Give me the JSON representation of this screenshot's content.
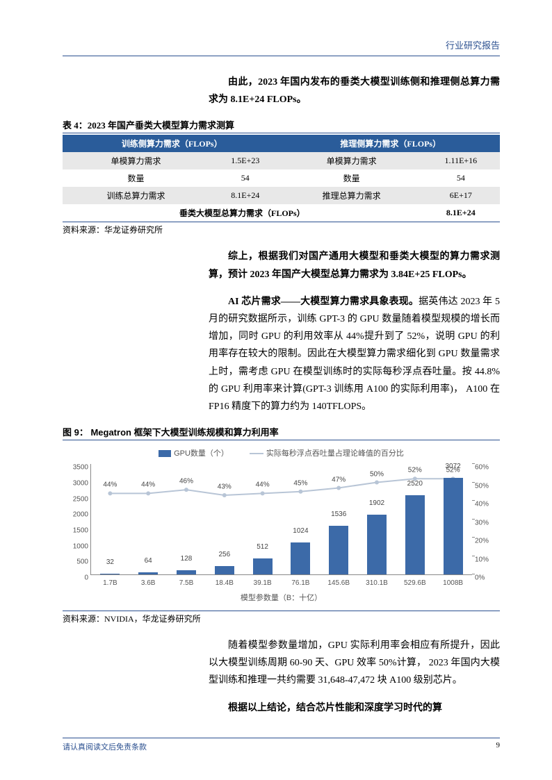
{
  "header": {
    "title": "行业研究报告"
  },
  "para1": "由此，2023 年国内发布的垂类大模型训练侧和推理侧总算力需求为 8.1E+24 FLOPs。",
  "table": {
    "title": "表 4：2023 年国产垂类大模型算力需求测算",
    "headers": [
      "训练侧算力需求（FLOPs）",
      "推理侧算力需求（FLOPs）"
    ],
    "rows": [
      [
        "单模算力需求",
        "1.5E+23",
        "单模算力需求",
        "1.11E+16"
      ],
      [
        "数量",
        "54",
        "数量",
        "54"
      ],
      [
        "训练总算力需求",
        "8.1E+24",
        "推理总算力需求",
        "6E+17"
      ]
    ],
    "total_row": [
      "垂类大模型总算力需求（FLOPs）",
      "8.1E+24"
    ],
    "source": "资料来源：华龙证券研究所"
  },
  "para2": "综上，根据我们对国产通用大模型和垂类大模型的算力需求测算，预计 2023 年国产大模型总算力需求为 3.84E+25 FLOPs。",
  "para3_lead": "AI 芯片需求——大模型算力需求具象表现。",
  "para3_body": "据英伟达 2023 年 5 月的研究数据所示，训练 GPT-3 的 GPU 数量随着模型规模的增长而增加，同时 GPU 的利用效率从 44%提升到了 52%，说明 GPU 的利用率存在较大的限制。因此在大模型算力需求细化到 GPU 数量需求上时，需考虑 GPU 在模型训练时的实际每秒浮点吞吐量。按 44.8%的 GPU 利用率来计算(GPT-3 训练用 A100 的实际利用率)， A100 在 FP16 精度下的算力约为 140TFLOPS。",
  "chart": {
    "title": "图 9： Megatron 框架下大模型训练规模和算力利用率",
    "legend_bar": "GPU数量（个）",
    "legend_line": "实际每秒浮点吞吐量占理论峰值的百分比",
    "x_categories": [
      "1.7B",
      "3.6B",
      "7.5B",
      "18.4B",
      "39.1B",
      "76.1B",
      "145.6B",
      "310.1B",
      "529.6B",
      "1008B"
    ],
    "bar_values": [
      32,
      64,
      128,
      256,
      512,
      1024,
      1536,
      1902,
      2520,
      3072
    ],
    "line_values_pct": [
      44,
      44,
      46,
      43,
      44,
      45,
      47,
      50,
      52,
      52
    ],
    "y_left": {
      "min": 0,
      "max": 3500,
      "ticks": [
        0,
        500,
        1000,
        1500,
        2000,
        2500,
        3000,
        3500
      ]
    },
    "y_right": {
      "min": 0,
      "max": 60,
      "ticks": [
        0,
        10,
        20,
        30,
        40,
        50,
        60
      ],
      "suffix": "%"
    },
    "x_axis_title": "模型参数量（B：十亿）",
    "bar_color": "#3c6aa8",
    "line_color": "#b8c5d6",
    "source": "资料来源：NVIDIA，华龙证券研究所"
  },
  "para4": "随着模型参数量增加，GPU 实际利用率会相应有所提升，因此以大模型训练周期 60-90 天、GPU 效率 50%计算， 2023 年国内大模型训练和推理一共约需要 31,648-47,472 块 A100 级别芯片。",
  "para5": "根据以上结论，结合芯片性能和深度学习时代的算",
  "footer": {
    "note": "请认真阅读文后免责条款",
    "page": "9"
  }
}
